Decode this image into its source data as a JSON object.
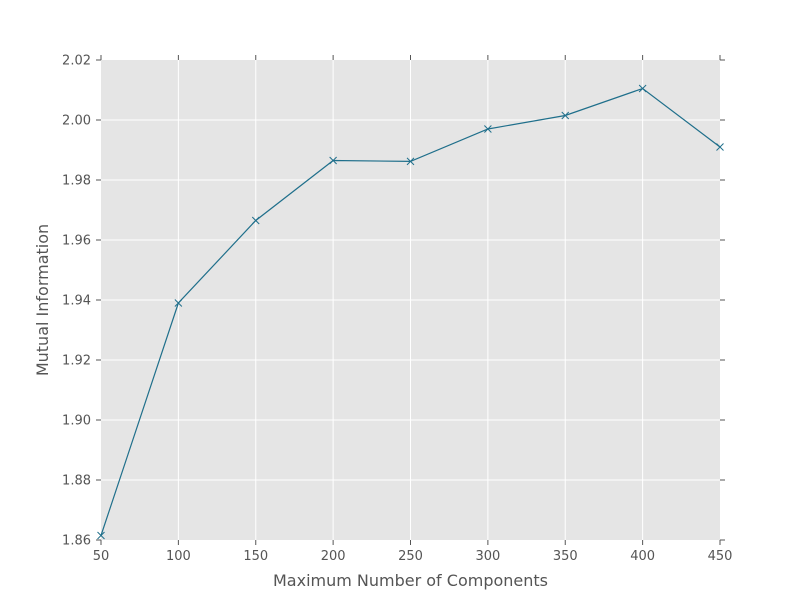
{
  "chart_data": {
    "type": "line",
    "title": "",
    "xlabel": "Maximum Number of Components",
    "ylabel": "Mutual Information",
    "xlim": [
      50,
      450
    ],
    "ylim": [
      1.86,
      2.02
    ],
    "xticks": [
      50,
      100,
      150,
      200,
      250,
      300,
      350,
      400,
      450
    ],
    "yticks": [
      1.86,
      1.88,
      1.9,
      1.92,
      1.94,
      1.96,
      1.98,
      2.0,
      2.02
    ],
    "xtick_labels": [
      "50",
      "100",
      "150",
      "200",
      "250",
      "300",
      "350",
      "400",
      "450"
    ],
    "ytick_labels": [
      "1.86",
      "1.88",
      "1.90",
      "1.92",
      "1.94",
      "1.96",
      "1.98",
      "2.00",
      "2.02"
    ],
    "grid": true,
    "background_color": "#e5e5e5",
    "series": [
      {
        "color": "#1f6f8b",
        "marker": "x",
        "x": [
          50,
          100,
          150,
          200,
          250,
          300,
          350,
          400,
          450
        ],
        "y": [
          1.8615,
          1.939,
          1.9665,
          1.9865,
          1.9862,
          1.997,
          2.0015,
          2.0105,
          1.991
        ]
      }
    ]
  }
}
